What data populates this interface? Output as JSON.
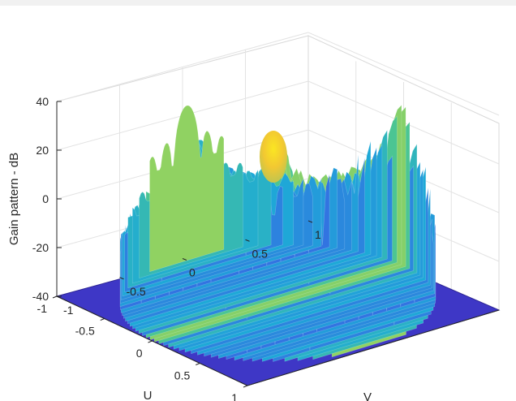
{
  "chart_data": {
    "type": "surface",
    "title": "",
    "zlabel": "Gain pattern - dB",
    "xlabel": "U",
    "ylabel": "V",
    "zlim": [
      -40,
      40
    ],
    "xlim": [
      -1,
      1
    ],
    "ylim": [
      -1,
      1
    ],
    "z_ticks": [
      -40,
      -20,
      0,
      20,
      40
    ],
    "u_ticks": [
      -1,
      -0.5,
      0,
      0.5,
      1
    ],
    "v_ticks": [
      -1,
      -0.5,
      0,
      0.5,
      1
    ],
    "z_tick_labels": [
      "-40",
      "-20",
      "0",
      "20",
      "40"
    ],
    "u_tick_labels": [
      "-1",
      "-0.5",
      "0",
      "0.5",
      "1"
    ],
    "v_tick_labels": [
      "-1",
      "-0.5",
      "0",
      "0.5",
      "1"
    ],
    "peak_gain_db": 26,
    "floor_db": -40,
    "domain": "unit circle u^2+v^2<=1",
    "grid": true,
    "colormap": "parula",
    "colors": {
      "floor": "#3e37c6",
      "low": "#3f49d6",
      "mid": "#21a6d8",
      "high": "#5cc98a",
      "peak": "#f7e11e"
    }
  }
}
